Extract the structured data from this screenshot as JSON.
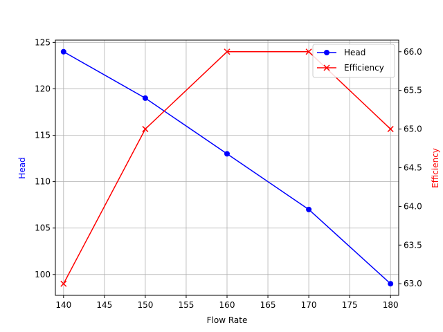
{
  "chart_data": {
    "type": "line",
    "x": [
      140,
      150,
      160,
      170,
      180
    ],
    "xlabel": "Flow Rate",
    "xlim": [
      139,
      181
    ],
    "xticks": [
      140,
      145,
      150,
      155,
      160,
      165,
      170,
      175,
      180
    ],
    "grid": true,
    "legend": "top-right",
    "series": [
      {
        "name": "Head",
        "axis": "left",
        "values": [
          124,
          119,
          113,
          107,
          99
        ],
        "color": "#0000ff",
        "marker": "circle"
      },
      {
        "name": "Efficiency",
        "axis": "right",
        "values": [
          63.0,
          65.0,
          66.0,
          66.0,
          65.0
        ],
        "color": "#ff0000",
        "marker": "x"
      }
    ],
    "y_left": {
      "label": "Head",
      "color": "#0000ff",
      "lim": [
        97.75,
        125.25
      ],
      "ticks": [
        100,
        105,
        110,
        115,
        120,
        125
      ],
      "tick_labels": [
        "100",
        "105",
        "110",
        "115",
        "120",
        "125"
      ]
    },
    "y_right": {
      "label": "Efficiency",
      "color": "#ff0000",
      "lim": [
        62.85,
        66.15
      ],
      "ticks": [
        63.0,
        63.5,
        64.0,
        64.5,
        65.0,
        65.5,
        66.0
      ],
      "tick_labels": [
        "63.0",
        "63.5",
        "64.0",
        "64.5",
        "65.0",
        "65.5",
        "66.0"
      ]
    }
  }
}
